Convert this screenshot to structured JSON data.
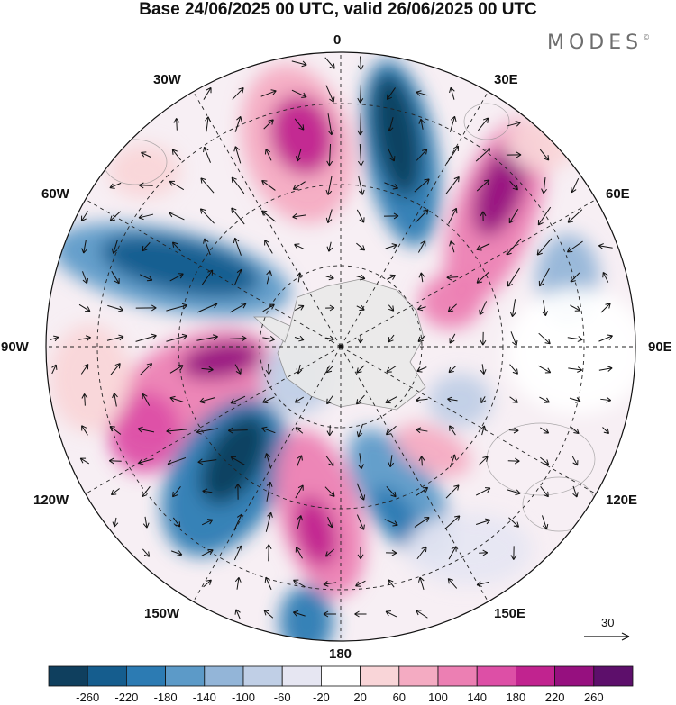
{
  "title": "Base 24/06/2025 00 UTC, valid 26/06/2025 00 UTC",
  "brand": "MODES",
  "brand_mark": "©",
  "map": {
    "projection": "south-polar-stereographic",
    "longitude_labels": {
      "top": "0",
      "top_left": "30W",
      "top_right": "30E",
      "upper_left": "60W",
      "upper_right": "60E",
      "left": "90W",
      "right": "90E",
      "lower_left": "120W",
      "lower_right": "120E",
      "bottom_left": "150W",
      "bottom_right": "150E",
      "bottom": "180"
    },
    "field_colors": {
      "positive": "#c8238f",
      "negative": "#125f8e",
      "land": "#e9e9e9"
    }
  },
  "reference_vector": {
    "label": "30"
  },
  "colorbar": {
    "colors": [
      "#0f3f5e",
      "#155d8e",
      "#2c7bb3",
      "#5c9ac8",
      "#93b5d8",
      "#c0cfe6",
      "#e6e6f2",
      "#ffffff",
      "#f9d5d8",
      "#f4abc2",
      "#ec7fb3",
      "#dd4fa6",
      "#c1238f",
      "#96107f",
      "#5d0f6b"
    ],
    "ticks": [
      "-260",
      "-220",
      "-180",
      "-140",
      "-100",
      "-60",
      "-20",
      "20",
      "60",
      "100",
      "140",
      "180",
      "220",
      "260"
    ]
  }
}
